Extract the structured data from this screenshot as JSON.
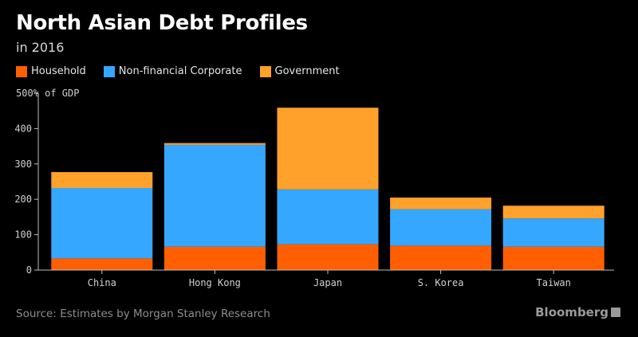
{
  "header": {
    "title": "North Asian Debt Profiles",
    "subtitle": "in 2016"
  },
  "footer": {
    "source": "Source: Estimates by Morgan Stanley Research",
    "brand": "Bloomberg"
  },
  "chart_data": {
    "type": "bar",
    "stacked": true,
    "ylabel": "500% of GDP",
    "ylim": [
      0,
      500
    ],
    "yticks": [
      0,
      100,
      200,
      300,
      400,
      500
    ],
    "grid": false,
    "legend_position": "top-left",
    "categories": [
      "China",
      "Hong Kong",
      "Japan",
      "S. Korea",
      "Taiwan"
    ],
    "series": [
      {
        "name": "Household",
        "color": "#ff5f00",
        "values": [
          33,
          66,
          73,
          69,
          66
        ]
      },
      {
        "name": "Non-financial Corporate",
        "color": "#35a7ff",
        "values": [
          199,
          288,
          155,
          103,
          80
        ]
      },
      {
        "name": "Government",
        "color": "#ffa12b",
        "values": [
          45,
          5,
          231,
          33,
          36
        ]
      }
    ]
  }
}
